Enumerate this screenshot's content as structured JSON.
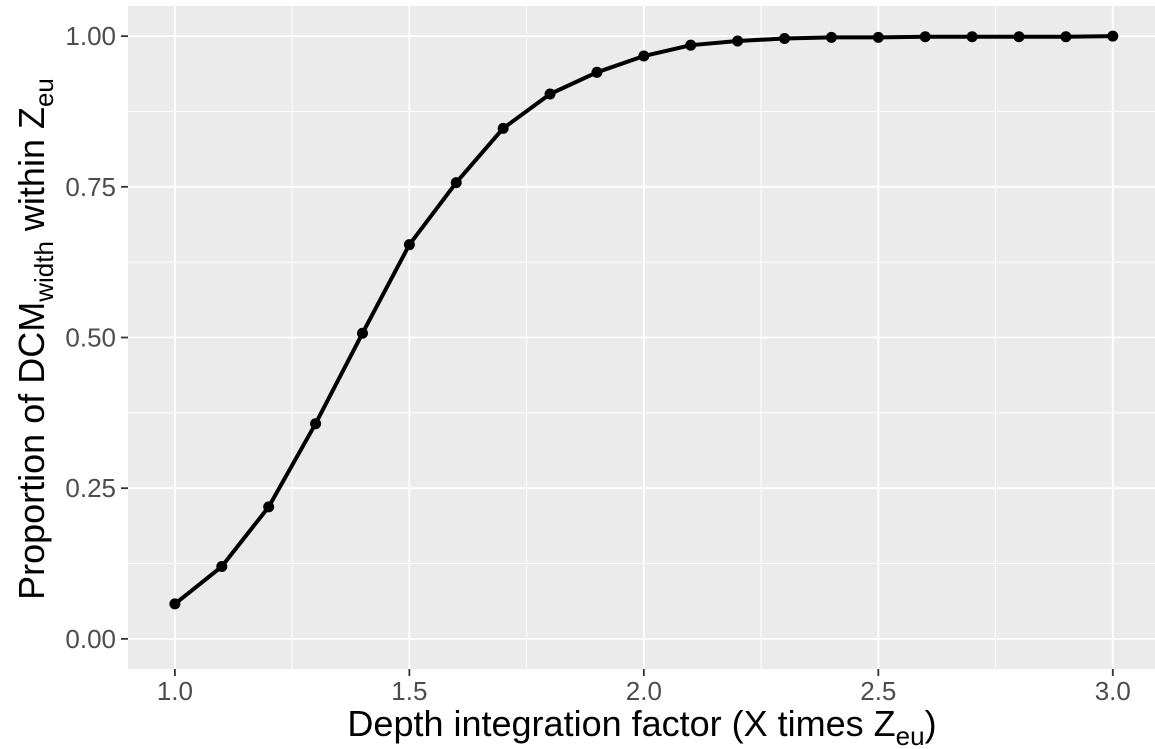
{
  "chart_data": {
    "type": "line",
    "title": "",
    "xlabel": {
      "prefix": "Depth integration factor (X times Z",
      "subscript": "eu",
      "suffix": ")"
    },
    "ylabel": {
      "part1": "Proportion of DCM",
      "subscript1": "width",
      "part2": " within Z",
      "subscript2": "eu"
    },
    "xlim": [
      0.9,
      3.09
    ],
    "ylim": [
      -0.05,
      1.05
    ],
    "x_ticks": [
      1.0,
      1.5,
      2.0,
      2.5,
      3.0
    ],
    "x_tick_labels": [
      "1.0",
      "1.5",
      "2.0",
      "2.5",
      "3.0"
    ],
    "y_ticks": [
      0,
      0.25,
      0.5,
      0.75,
      1.0
    ],
    "y_tick_labels": [
      "0.00",
      "0.25",
      "0.50",
      "0.75",
      "1.00"
    ],
    "grid": true,
    "series": [
      {
        "x": [
          1.0,
          1.1,
          1.2,
          1.3,
          1.4,
          1.5,
          1.6,
          1.7,
          1.8,
          1.9,
          2.0,
          2.1,
          2.2,
          2.3,
          2.4,
          2.5,
          2.6,
          2.7,
          2.8,
          2.9,
          3.0
        ],
        "values": [
          0.058,
          0.12,
          0.219,
          0.357,
          0.507,
          0.654,
          0.757,
          0.847,
          0.904,
          0.94,
          0.967,
          0.985,
          0.992,
          0.996,
          0.998,
          0.998,
          0.999,
          0.999,
          0.999,
          0.999,
          1.0
        ]
      }
    ],
    "colors": {
      "panel": "#ebebeb",
      "grid_major": "#ffffff",
      "line": "#000000",
      "tick_text": "#4d4d4d",
      "axis_text": "#000000"
    }
  }
}
